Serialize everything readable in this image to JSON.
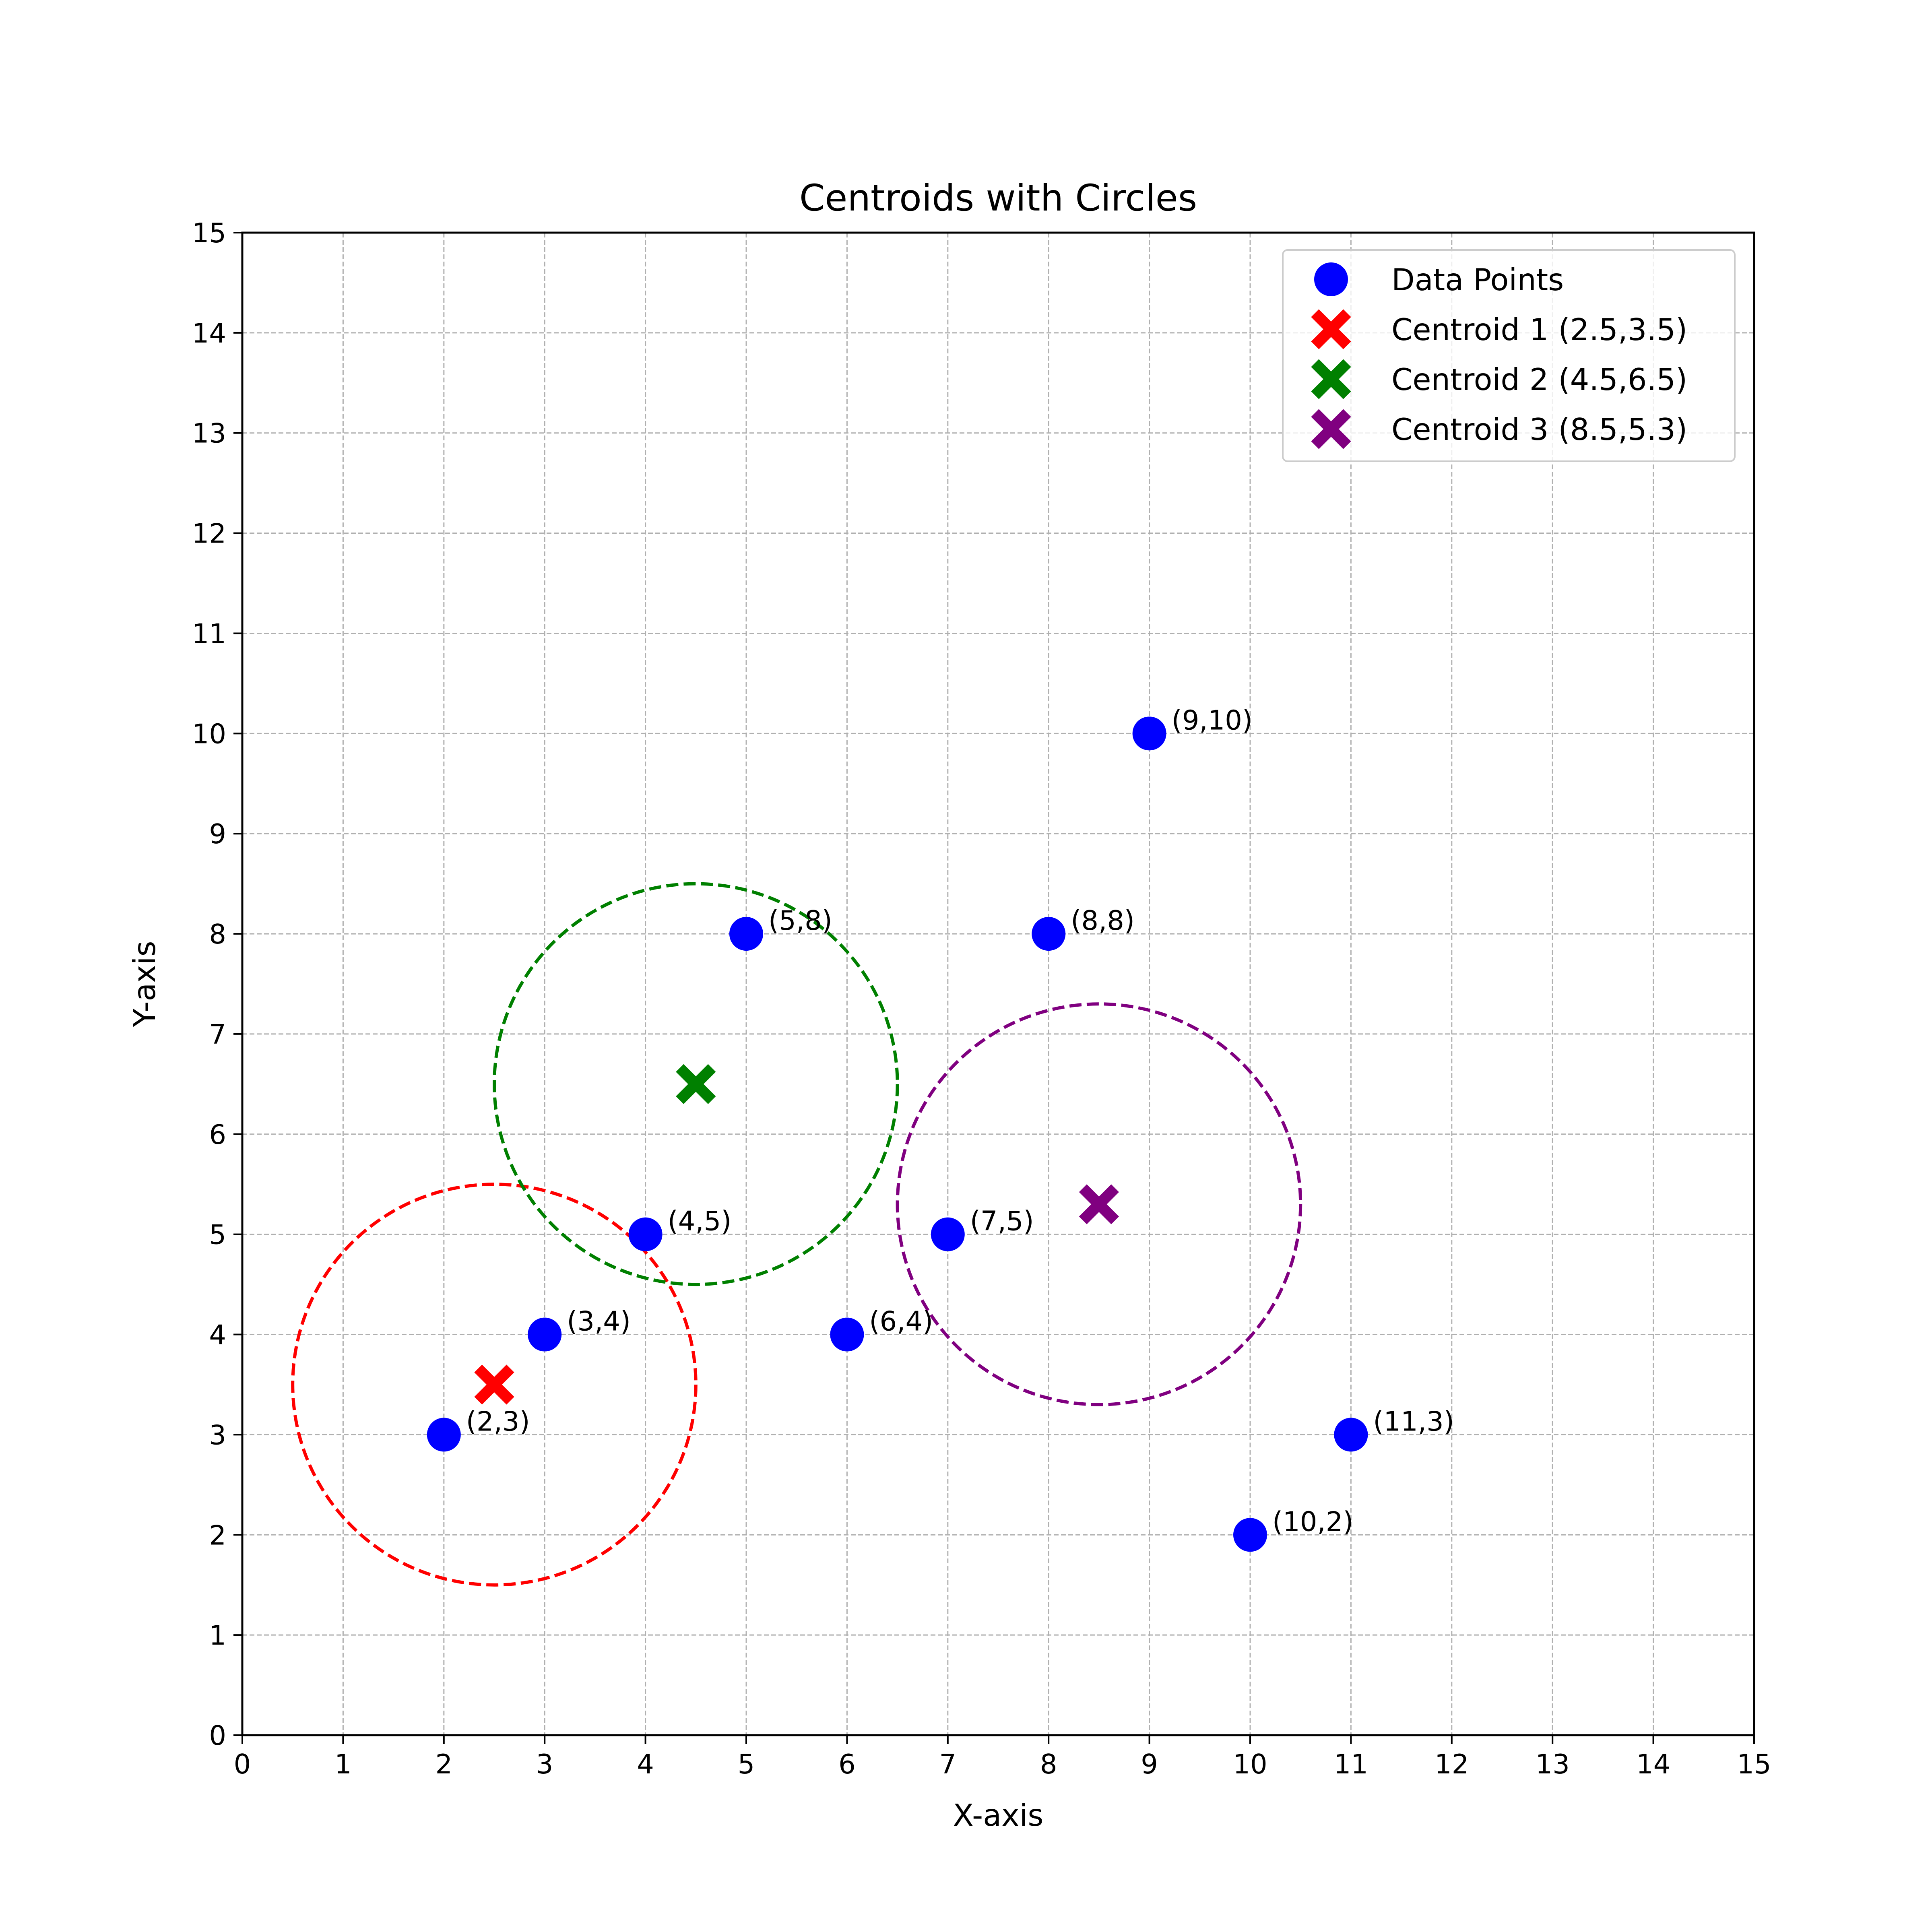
{
  "chart_data": {
    "type": "scatter",
    "title": "Centroids with Circles",
    "xlabel": "X-axis",
    "ylabel": "Y-axis",
    "xlim": [
      0,
      15
    ],
    "ylim": [
      0,
      15
    ],
    "xticks": [
      "0",
      "1",
      "2",
      "3",
      "4",
      "5",
      "6",
      "7",
      "8",
      "9",
      "10",
      "11",
      "12",
      "13",
      "14",
      "15"
    ],
    "yticks": [
      "0",
      "1",
      "2",
      "3",
      "4",
      "5",
      "6",
      "7",
      "8",
      "9",
      "10",
      "11",
      "12",
      "13",
      "14",
      "15"
    ],
    "grid": true,
    "legend_position": "top-right",
    "series": [
      {
        "name": "Data Points",
        "marker": "circle",
        "color": "#0000ff",
        "points": [
          {
            "x": 2,
            "y": 3,
            "label": "(2,3)"
          },
          {
            "x": 3,
            "y": 4,
            "label": "(3,4)"
          },
          {
            "x": 4,
            "y": 5,
            "label": "(4,5)"
          },
          {
            "x": 5,
            "y": 8,
            "label": "(5,8)"
          },
          {
            "x": 6,
            "y": 4,
            "label": "(6,4)"
          },
          {
            "x": 7,
            "y": 5,
            "label": "(7,5)"
          },
          {
            "x": 8,
            "y": 8,
            "label": "(8,8)"
          },
          {
            "x": 9,
            "y": 10,
            "label": "(9,10)"
          },
          {
            "x": 10,
            "y": 2,
            "label": "(10,2)"
          },
          {
            "x": 11,
            "y": 3,
            "label": "(11,3)"
          }
        ]
      },
      {
        "name": "Centroid 1 (2.5,3.5)",
        "marker": "x",
        "color": "#ff0000",
        "points": [
          {
            "x": 2.5,
            "y": 3.5
          }
        ],
        "circle_radius": 2
      },
      {
        "name": "Centroid 2 (4.5,6.5)",
        "marker": "x",
        "color": "#008000",
        "points": [
          {
            "x": 4.5,
            "y": 6.5
          }
        ],
        "circle_radius": 2
      },
      {
        "name": "Centroid 3 (8.5,5.3)",
        "marker": "x",
        "color": "#800080",
        "points": [
          {
            "x": 8.5,
            "y": 5.3
          }
        ],
        "circle_radius": 2
      }
    ]
  }
}
